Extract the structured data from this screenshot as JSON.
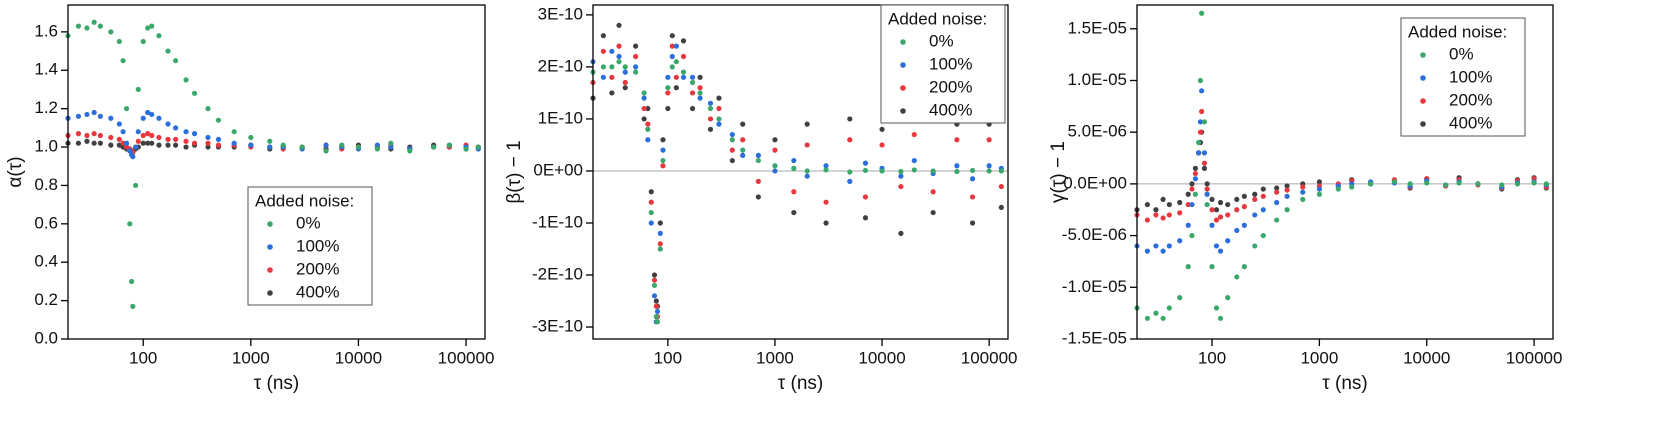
{
  "chart_data": [
    {
      "type": "scatter",
      "xlabel": "τ (ns)",
      "ylabel": "α(τ)",
      "xscale": "log",
      "xlim": [
        20,
        150000
      ],
      "xticks": [
        100,
        1000,
        10000,
        100000
      ],
      "ylim": [
        0,
        1.74
      ],
      "yticks": [
        {
          "value": 0,
          "label": "0.0"
        },
        0.2,
        0.4,
        0.6,
        0.8,
        {
          "value": 1,
          "label": "1.0"
        },
        1.2,
        1.4,
        1.6
      ],
      "legend_title": "Added noise:",
      "legend": "center right",
      "x": [
        20,
        25,
        30,
        35,
        40,
        50,
        60,
        65,
        70,
        75,
        78,
        80,
        85,
        90,
        100,
        110,
        120,
        140,
        170,
        200,
        250,
        300,
        400,
        500,
        700,
        1000,
        1500,
        2000,
        3000,
        5000,
        7000,
        10000,
        15000,
        20000,
        30000,
        50000,
        70000,
        100000,
        130000
      ],
      "series": [
        {
          "name": "0%",
          "color": "#3aa86b",
          "values": [
            1.58,
            1.63,
            1.62,
            1.65,
            1.63,
            1.6,
            1.55,
            1.45,
            1.2,
            0.6,
            0.3,
            0.17,
            0.8,
            1.3,
            1.55,
            1.62,
            1.63,
            1.58,
            1.5,
            1.45,
            1.35,
            1.28,
            1.2,
            1.14,
            1.08,
            1.05,
            1.03,
            1.01,
            1.0,
            0.98,
            1.01,
            1.0,
            0.99,
            1.02,
            0.98,
            1.0,
            1.01,
            0.99,
            1.0
          ]
        },
        {
          "name": "100%",
          "color": "#2a6fdb",
          "values": [
            1.15,
            1.16,
            1.17,
            1.18,
            1.16,
            1.15,
            1.12,
            1.08,
            1.02,
            0.98,
            0.96,
            0.95,
            1.0,
            1.08,
            1.15,
            1.18,
            1.17,
            1.15,
            1.12,
            1.1,
            1.08,
            1.07,
            1.05,
            1.04,
            1.02,
            1.01,
            1.0,
            1.0,
            0.99,
            1.01,
            1.0,
            0.99,
            1.01,
            1.0,
            0.99,
            1.0,
            1.01,
            1.0,
            0.99
          ]
        },
        {
          "name": "200%",
          "color": "#e8383d",
          "values": [
            1.06,
            1.07,
            1.06,
            1.07,
            1.06,
            1.05,
            1.04,
            1.02,
            1.0,
            0.99,
            0.98,
            0.97,
            1.0,
            1.03,
            1.06,
            1.07,
            1.06,
            1.05,
            1.04,
            1.04,
            1.03,
            1.02,
            1.02,
            1.01,
            1.01,
            1.0,
            1.0,
            0.99,
            1.0,
            1.01,
            0.99,
            1.0,
            1.0,
            1.01,
            0.99,
            1.0,
            1.0,
            1.01,
            1.0
          ]
        },
        {
          "name": "400%",
          "color": "#404040",
          "values": [
            1.02,
            1.02,
            1.03,
            1.02,
            1.02,
            1.01,
            1.01,
            1.0,
            0.99,
            0.99,
            0.98,
            0.98,
            0.99,
            1.0,
            1.02,
            1.02,
            1.02,
            1.01,
            1.01,
            1.01,
            1.0,
            1.01,
            1.0,
            1.0,
            1.0,
            1.01,
            0.99,
            1.0,
            1.0,
            0.99,
            1.0,
            1.01,
            1.0,
            0.99,
            1.0,
            1.01,
            1.0,
            0.99,
            1.0
          ]
        }
      ]
    },
    {
      "type": "scatter",
      "xlabel": "τ (ns)",
      "ylabel": "β(τ) − 1",
      "xscale": "log",
      "xlim": [
        20,
        150000
      ],
      "xticks": [
        100,
        1000,
        10000,
        100000
      ],
      "ylim": [
        -3.23e-10,
        3.19e-10
      ],
      "reference_line": 0,
      "yticks": [
        {
          "value": -3e-10,
          "label": "-3E-10"
        },
        {
          "value": -2e-10,
          "label": "-2E-10"
        },
        {
          "value": -1e-10,
          "label": "-1E-10"
        },
        {
          "value": 0,
          "label": "0E+00"
        },
        {
          "value": 1e-10,
          "label": "1E-10"
        },
        {
          "value": 2e-10,
          "label": "2E-10"
        },
        {
          "value": 3e-10,
          "label": "3E-10"
        }
      ],
      "legend_title": "Added noise:",
      "legend": "upper right",
      "x": [
        20,
        25,
        30,
        35,
        40,
        50,
        60,
        65,
        70,
        75,
        78,
        80,
        85,
        90,
        100,
        110,
        120,
        140,
        170,
        200,
        250,
        300,
        400,
        500,
        700,
        1000,
        1500,
        2000,
        3000,
        5000,
        7000,
        10000,
        15000,
        20000,
        30000,
        50000,
        70000,
        100000,
        130000
      ],
      "series": [
        {
          "name": "0%",
          "color": "#3aa86b",
          "values": [
            1.9e-10,
            2e-10,
            2e-10,
            2.1e-10,
            2e-10,
            1.9e-10,
            1.5e-10,
            8e-11,
            -8e-11,
            -2.2e-10,
            -2.8e-10,
            -2.9e-10,
            -1.5e-10,
            2e-11,
            1.6e-10,
            2e-10,
            2.1e-10,
            1.9e-10,
            1.7e-10,
            1.5e-10,
            1.2e-10,
            1e-10,
            6e-11,
            4e-11,
            2e-11,
            1e-11,
            5e-12,
            0,
            2e-12,
            -2e-12,
            1e-12,
            0,
            -1e-12,
            2e-12,
            0,
            -1e-12,
            1e-12,
            0,
            0
          ]
        },
        {
          "name": "100%",
          "color": "#2a6fdb",
          "values": [
            2.1e-10,
            1.8e-10,
            2.3e-10,
            2.2e-10,
            1.9e-10,
            2e-10,
            1.4e-10,
            6e-11,
            -1e-10,
            -2.4e-10,
            -2.9e-10,
            -2.7e-10,
            -1.2e-10,
            4e-11,
            1.8e-10,
            2.2e-10,
            2.4e-10,
            1.8e-10,
            1.8e-10,
            1.4e-10,
            1.3e-10,
            9e-11,
            7e-11,
            3e-11,
            3e-11,
            0,
            2e-11,
            -1e-11,
            1e-11,
            -2e-11,
            1.5e-11,
            5e-12,
            -1e-11,
            2e-11,
            -5e-12,
            1e-11,
            -1.5e-11,
            1e-11,
            5e-12
          ]
        },
        {
          "name": "200%",
          "color": "#e8383d",
          "values": [
            1.7e-10,
            2.3e-10,
            1.8e-10,
            2.4e-10,
            1.7e-10,
            2.2e-10,
            1.2e-10,
            9e-11,
            -6e-11,
            -2.1e-10,
            -2.6e-10,
            -2.8e-10,
            -1.4e-10,
            1e-11,
            1.5e-10,
            2.4e-10,
            1.8e-10,
            2.2e-10,
            1.5e-10,
            1.6e-10,
            1e-10,
            1.2e-10,
            4e-11,
            6e-11,
            -2e-11,
            4e-11,
            -4e-11,
            5e-11,
            -6e-11,
            6e-11,
            -5e-11,
            5e-11,
            -3e-11,
            7e-11,
            -4e-11,
            6e-11,
            -5e-11,
            6e-11,
            -3e-11
          ]
        },
        {
          "name": "400%",
          "color": "#404040",
          "values": [
            1.4e-10,
            2.6e-10,
            1.5e-10,
            2.8e-10,
            1.6e-10,
            2.4e-10,
            1e-10,
            1.2e-10,
            -4e-11,
            -2e-10,
            -2.5e-10,
            -2.6e-10,
            -1e-10,
            6e-11,
            1.2e-10,
            2.6e-10,
            1.6e-10,
            2.5e-10,
            1.2e-10,
            1.8e-10,
            8e-11,
            1.4e-10,
            2e-11,
            9e-11,
            -5e-11,
            6e-11,
            -8e-11,
            9e-11,
            -1e-10,
            1e-10,
            -9e-11,
            8e-11,
            -1.2e-10,
            1.1e-10,
            -8e-11,
            9e-11,
            -1e-10,
            9e-11,
            -7e-11
          ]
        }
      ]
    },
    {
      "type": "scatter",
      "xlabel": "τ (ns)",
      "ylabel": "γ(τ) − 1",
      "xscale": "log",
      "xlim": [
        20,
        150000
      ],
      "xticks": [
        100,
        1000,
        10000,
        100000
      ],
      "ylim": [
        -1.5e-05,
        1.73e-05
      ],
      "reference_line": 0,
      "yticks": [
        {
          "value": -1.5e-05,
          "label": "-1.5E-05"
        },
        {
          "value": -1e-05,
          "label": "-1.0E-05"
        },
        {
          "value": -5e-06,
          "label": "-5.0E-06"
        },
        {
          "value": 0,
          "label": "0.0E+00"
        },
        {
          "value": 5e-06,
          "label": "5.0E-06"
        },
        {
          "value": 1e-05,
          "label": "1.0E-05"
        },
        {
          "value": 1.5e-05,
          "label": "1.5E-05"
        }
      ],
      "legend_title": "Added noise:",
      "legend": "upper right",
      "x": [
        20,
        25,
        30,
        35,
        40,
        50,
        60,
        65,
        70,
        75,
        78,
        80,
        85,
        90,
        100,
        110,
        120,
        140,
        170,
        200,
        250,
        300,
        400,
        500,
        700,
        1000,
        1500,
        2000,
        3000,
        5000,
        7000,
        10000,
        15000,
        20000,
        30000,
        50000,
        70000,
        100000,
        130000
      ],
      "series": [
        {
          "name": "0%",
          "color": "#3aa86b",
          "values": [
            -1.2e-05,
            -1.3e-05,
            -1.25e-05,
            -1.3e-05,
            -1.2e-05,
            -1.1e-05,
            -8e-06,
            -5e-06,
            -1e-06,
            4e-06,
            1e-05,
            1.65e-05,
            6e-06,
            -2e-06,
            -8e-06,
            -1.2e-05,
            -1.3e-05,
            -1.1e-05,
            -9e-06,
            -8e-06,
            -6e-06,
            -5e-06,
            -3.5e-06,
            -2.5e-06,
            -1.5e-06,
            -1e-06,
            -5e-07,
            -3e-07,
            0,
            2e-07,
            0,
            1e-07,
            -1e-07,
            1e-07,
            0,
            -1e-07,
            0,
            1e-07,
            0
          ]
        },
        {
          "name": "100%",
          "color": "#2a6fdb",
          "values": [
            -6e-06,
            -6.5e-06,
            -6e-06,
            -6.5e-06,
            -6e-06,
            -5.5e-06,
            -4e-06,
            -2e-06,
            5e-07,
            3e-06,
            6e-06,
            9e-06,
            3e-06,
            -1e-06,
            -4e-06,
            -6e-06,
            -6.5e-06,
            -5.5e-06,
            -4.5e-06,
            -4e-06,
            -3e-06,
            -2.5e-06,
            -1.8e-06,
            -1.2e-06,
            -8e-07,
            -5e-07,
            -2e-07,
            0,
            2e-07,
            1e-07,
            -2e-07,
            3e-07,
            -1e-07,
            2e-07,
            0,
            -3e-07,
            1e-07,
            2e-07,
            -1e-07
          ]
        },
        {
          "name": "200%",
          "color": "#e8383d",
          "values": [
            -3e-06,
            -3.5e-06,
            -3e-06,
            -3.3e-06,
            -3e-06,
            -2.8e-06,
            -2e-06,
            -5e-07,
            1e-06,
            3e-06,
            5e-06,
            7e-06,
            2e-06,
            -5e-07,
            -2.5e-06,
            -3.5e-06,
            -3.2e-06,
            -3e-06,
            -2.5e-06,
            -2.2e-06,
            -1.5e-06,
            -1.2e-06,
            -8e-07,
            -6e-07,
            -3e-07,
            -2e-07,
            0,
            3e-07,
            1e-07,
            4e-07,
            -3e-07,
            5e-07,
            -2e-07,
            4e-07,
            -1e-07,
            -4e-07,
            3e-07,
            5e-07,
            -3e-07
          ]
        },
        {
          "name": "400%",
          "color": "#404040",
          "values": [
            -2.5e-06,
            -2e-06,
            -2.5e-06,
            -1.5e-06,
            -2e-06,
            -1.8e-06,
            -1e-06,
            0,
            1.5e-06,
            3e-06,
            4e-06,
            5e-06,
            1.5e-06,
            0,
            -1.5e-06,
            -2.5e-06,
            -1.8e-06,
            -2e-06,
            -1.5e-06,
            -1.2e-06,
            -1e-06,
            -5e-07,
            -4e-07,
            -2e-07,
            0,
            2e-07,
            -2e-07,
            4e-07,
            0,
            3e-07,
            -4e-07,
            5e-07,
            -2e-07,
            6e-07,
            0,
            -5e-07,
            4e-07,
            6e-07,
            -4e-07
          ]
        }
      ]
    }
  ]
}
